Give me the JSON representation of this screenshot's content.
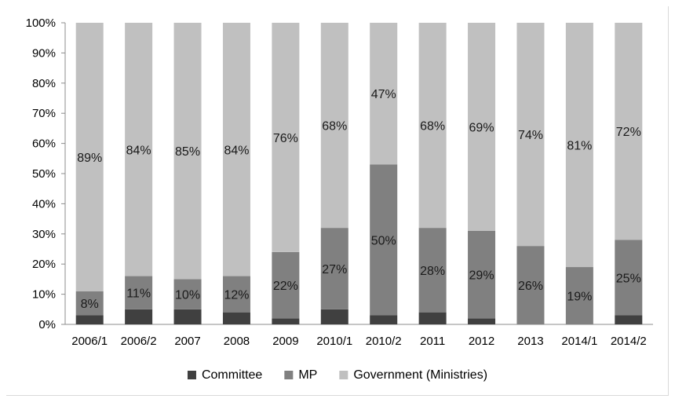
{
  "chart_data": {
    "type": "bar",
    "stacked": true,
    "percent_axis": true,
    "title": "",
    "xlabel": "",
    "ylabel": "",
    "ylim": [
      0,
      100
    ],
    "y_ticks": [
      "0%",
      "10%",
      "20%",
      "30%",
      "40%",
      "50%",
      "60%",
      "70%",
      "80%",
      "90%",
      "100%"
    ],
    "categories": [
      "2006/1",
      "2006/2",
      "2007",
      "2008",
      "2009",
      "2010/1",
      "2010/2",
      "2011",
      "2012",
      "2013",
      "2014/1",
      "2014/2"
    ],
    "series": [
      {
        "name": "Committee",
        "color": "#404040",
        "values": [
          3,
          5,
          5,
          4,
          2,
          5,
          3,
          4,
          2,
          0,
          0,
          3
        ],
        "labels": [
          "",
          "",
          "",
          "",
          "",
          "",
          "",
          "",
          "",
          "",
          "",
          ""
        ]
      },
      {
        "name": "MP",
        "color": "#808080",
        "values": [
          8,
          11,
          10,
          12,
          22,
          27,
          50,
          28,
          29,
          26,
          19,
          25
        ],
        "labels": [
          "8%",
          "11%",
          "10%",
          "12%",
          "22%",
          "27%",
          "50%",
          "28%",
          "29%",
          "26%",
          "19%",
          "25%"
        ]
      },
      {
        "name": "Government (Ministries)",
        "color": "#c0c0c0",
        "values": [
          89,
          84,
          85,
          84,
          76,
          68,
          47,
          68,
          69,
          74,
          81,
          72
        ],
        "labels": [
          "89%",
          "84%",
          "85%",
          "84%",
          "76%",
          "68%",
          "47%",
          "68%",
          "69%",
          "74%",
          "81%",
          "72%"
        ]
      }
    ],
    "legend": {
      "position": "bottom"
    },
    "grid": false
  }
}
